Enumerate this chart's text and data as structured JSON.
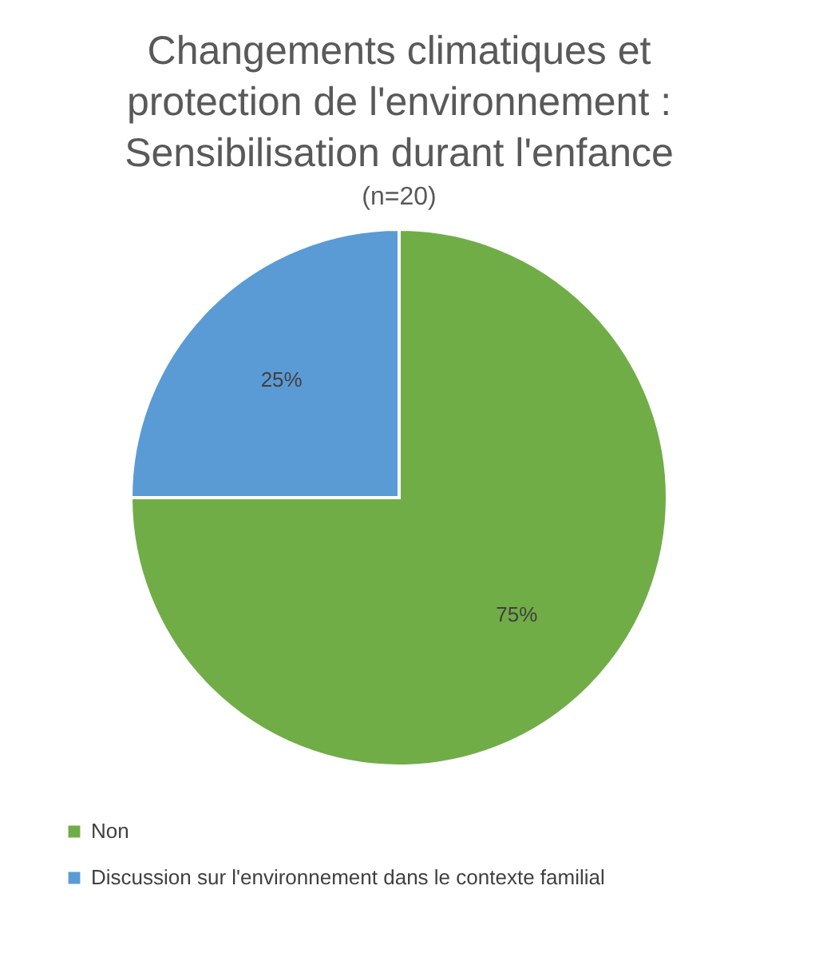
{
  "chart_data": {
    "type": "pie",
    "title": [
      "Changements climatiques et",
      "protection de l'environnement :",
      "Sensibilisation durant l'enfance"
    ],
    "subtitle": "(n=20)",
    "categories": [
      "Non",
      "Discussion sur l'environnement dans le contexte familial"
    ],
    "values": [
      75,
      25
    ],
    "colors": [
      "#70ad47",
      "#5b9bd5"
    ],
    "value_labels": [
      "75%",
      "25%"
    ],
    "legend": "bottom"
  }
}
